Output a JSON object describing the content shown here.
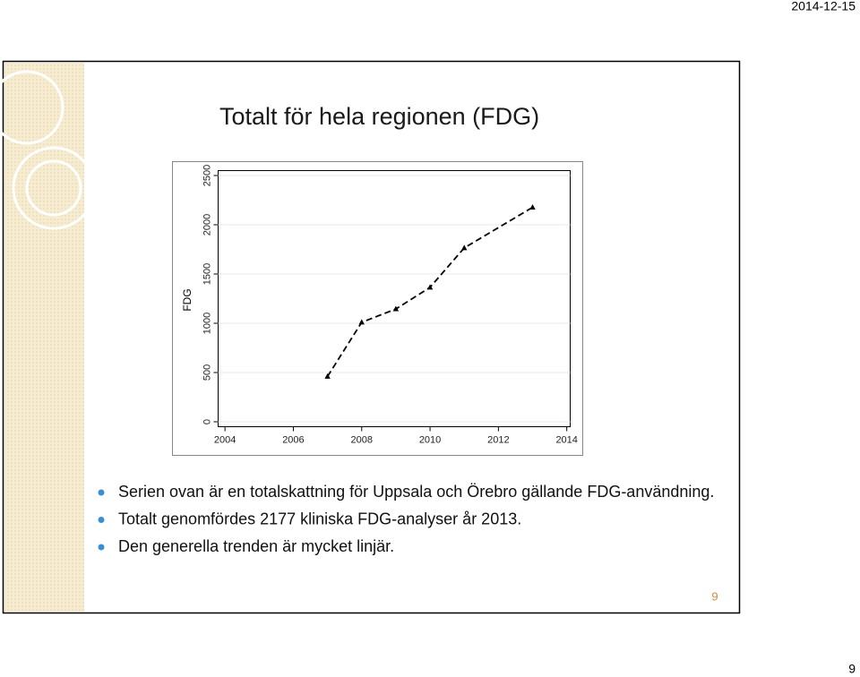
{
  "date": "2014-12-15",
  "chart_data": {
    "type": "line",
    "title": "Totalt för hela regionen (FDG)",
    "y_label": "FDG",
    "x": [
      2007,
      2008,
      2009,
      2010,
      2011,
      2013
    ],
    "series": [
      {
        "color": "#000000",
        "values": [
          460,
          1010,
          1145,
          1365,
          1765,
          2177
        ]
      }
    ],
    "xlim": [
      2003.8,
      2014.1
    ],
    "xticks": [
      2004,
      2006,
      2008,
      2010,
      2012,
      2014
    ],
    "ylim": [
      -50,
      2550
    ],
    "yticks": [
      0,
      500,
      1000,
      1500,
      2000,
      2500
    ],
    "grid": true
  },
  "bullets": [
    "Serien ovan är en totalskattning för Uppsala och Örebro gällande FDG-användning.",
    "Totalt genomfördes 2177 kliniska FDG-analyser år 2013.",
    "Den generella trenden är mycket linjär."
  ],
  "slide_number": "9",
  "page_number": "9"
}
